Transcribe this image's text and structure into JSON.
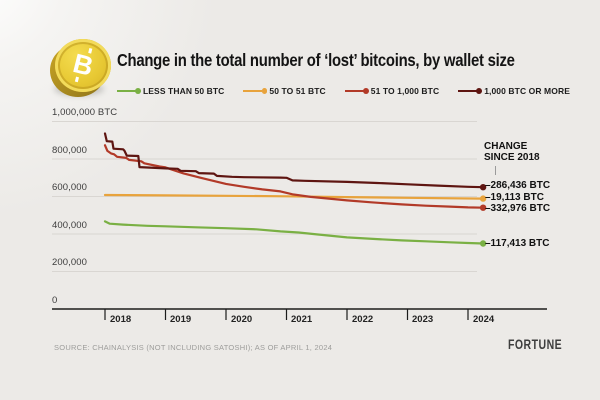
{
  "header": {
    "title": "Change in the total number of ‘lost’ bitcoins, by wallet size",
    "coin_letter": "B"
  },
  "legend": [
    {
      "label": "LESS THAN 50 BTC",
      "color": "#7ab044"
    },
    {
      "label": "50 TO 51 BTC",
      "color": "#e8a33c"
    },
    {
      "label": "51 TO 1,000 BTC",
      "color": "#b23a28"
    },
    {
      "label": "1,000 BTC OR MORE",
      "color": "#5e1511"
    }
  ],
  "annotations": {
    "header_line1": "CHANGE",
    "header_line2": "SINCE 2018"
  },
  "chart_data": {
    "type": "line",
    "title": "Change in the total number of ‘lost’ bitcoins, by wallet size",
    "xlabel": "",
    "ylabel": "BTC",
    "ylim": [
      0,
      1000000
    ],
    "xlim": [
      2018,
      2024.25
    ],
    "grid": true,
    "legend_position": "top",
    "style": {
      "grid_color": "#d9d6d2",
      "axis_color": "#1c1c1c"
    },
    "y_ticks": [
      {
        "value": 1000000,
        "label": "1,000,000 BTC"
      },
      {
        "value": 800000,
        "label": "800,000"
      },
      {
        "value": 600000,
        "label": "600,000"
      },
      {
        "value": 400000,
        "label": "400,000"
      },
      {
        "value": 200000,
        "label": "200,000"
      },
      {
        "value": 0,
        "label": "0"
      }
    ],
    "x_ticks": [
      {
        "value": 2018,
        "label": "2018"
      },
      {
        "value": 2019,
        "label": "2019"
      },
      {
        "value": 2020,
        "label": "2020"
      },
      {
        "value": 2021,
        "label": "2021"
      },
      {
        "value": 2022,
        "label": "2022"
      },
      {
        "value": 2023,
        "label": "2023"
      },
      {
        "value": 2024,
        "label": "2024"
      }
    ],
    "series": [
      {
        "id": "less-than-50-btc",
        "name": "LESS THAN 50 BTC",
        "color": "#7ab044",
        "change_since_2018": -117413,
        "change_label": "–117,413 BTC",
        "points": [
          [
            2018.0,
            467000
          ],
          [
            2018.08,
            455000
          ],
          [
            2018.3,
            450000
          ],
          [
            2018.7,
            444000
          ],
          [
            2019.0,
            441000
          ],
          [
            2019.5,
            436000
          ],
          [
            2020.0,
            431000
          ],
          [
            2020.5,
            425000
          ],
          [
            2020.9,
            414000
          ],
          [
            2021.2,
            408000
          ],
          [
            2021.5,
            398000
          ],
          [
            2022.0,
            382000
          ],
          [
            2022.5,
            373000
          ],
          [
            2022.9,
            366000
          ],
          [
            2023.3,
            361000
          ],
          [
            2023.7,
            356000
          ],
          [
            2024.0,
            352000
          ],
          [
            2024.25,
            349587
          ]
        ]
      },
      {
        "id": "50-to-51-btc",
        "name": "50 TO 51 BTC",
        "color": "#e8a33c",
        "change_since_2018": -19113,
        "change_label": "–19,113 BTC",
        "points": [
          [
            2018.0,
            608000
          ],
          [
            2019.0,
            606000
          ],
          [
            2020.0,
            604000
          ],
          [
            2021.0,
            601000
          ],
          [
            2022.0,
            597000
          ],
          [
            2023.0,
            593000
          ],
          [
            2024.25,
            588887
          ]
        ]
      },
      {
        "id": "51-to-1000-btc",
        "name": "51 TO 1,000 BTC",
        "color": "#b23a28",
        "change_since_2018": -332976,
        "change_label": "–332,976 BTC",
        "points": [
          [
            2018.0,
            873000
          ],
          [
            2018.04,
            843000
          ],
          [
            2018.1,
            830000
          ],
          [
            2018.15,
            825000
          ],
          [
            2018.2,
            812000
          ],
          [
            2018.35,
            806000
          ],
          [
            2018.4,
            795000
          ],
          [
            2018.6,
            788000
          ],
          [
            2018.65,
            777000
          ],
          [
            2018.9,
            760000
          ],
          [
            2019.0,
            755000
          ],
          [
            2019.3,
            723000
          ],
          [
            2019.6,
            698000
          ],
          [
            2020.0,
            667000
          ],
          [
            2020.3,
            652000
          ],
          [
            2020.6,
            638000
          ],
          [
            2020.9,
            627000
          ],
          [
            2021.1,
            612000
          ],
          [
            2021.4,
            598000
          ],
          [
            2021.7,
            589000
          ],
          [
            2022.0,
            579000
          ],
          [
            2022.4,
            569000
          ],
          [
            2022.9,
            558000
          ],
          [
            2023.3,
            551000
          ],
          [
            2023.7,
            546000
          ],
          [
            2024.0,
            542000
          ],
          [
            2024.25,
            540024
          ]
        ]
      },
      {
        "id": "1000-btc-or-more",
        "name": "1,000 BTC OR MORE",
        "color": "#5e1511",
        "change_since_2018": -286436,
        "change_label": "–286,436 BTC",
        "points": [
          [
            2018.0,
            936000
          ],
          [
            2018.03,
            895000
          ],
          [
            2018.12,
            893000
          ],
          [
            2018.14,
            855000
          ],
          [
            2018.3,
            852000
          ],
          [
            2018.32,
            845000
          ],
          [
            2018.36,
            818000
          ],
          [
            2018.55,
            816000
          ],
          [
            2018.57,
            757000
          ],
          [
            2019.0,
            750000
          ],
          [
            2019.2,
            748000
          ],
          [
            2019.25,
            737000
          ],
          [
            2019.5,
            735000
          ],
          [
            2019.55,
            725000
          ],
          [
            2019.8,
            722000
          ],
          [
            2019.85,
            710000
          ],
          [
            2020.1,
            705000
          ],
          [
            2020.3,
            703000
          ],
          [
            2020.9,
            701000
          ],
          [
            2021.0,
            700000
          ],
          [
            2021.1,
            686000
          ],
          [
            2021.3,
            684000
          ],
          [
            2022.0,
            678000
          ],
          [
            2022.5,
            672000
          ],
          [
            2023.0,
            665000
          ],
          [
            2023.5,
            658000
          ],
          [
            2024.0,
            652000
          ],
          [
            2024.25,
            649564
          ]
        ]
      }
    ]
  },
  "footer": {
    "source": "SOURCE: CHAINALYSIS (NOT INCLUDING SATOSHI); AS OF APRIL 1, 2024",
    "brand": "FORTUNE"
  }
}
